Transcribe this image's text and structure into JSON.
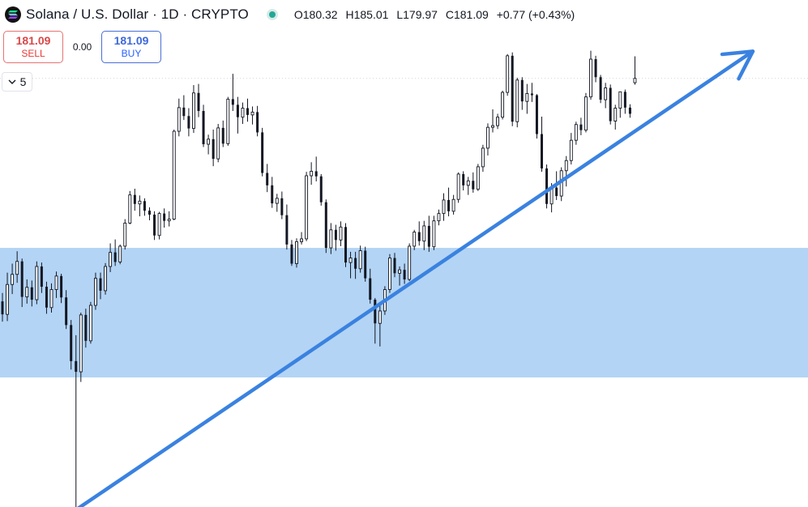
{
  "symbol": {
    "title": "Solana / U.S. Dollar · 1D · CRYPTO",
    "market_status_color": "#26a69a"
  },
  "ohlc": {
    "o_label": "O",
    "o": "180.32",
    "h_label": "H",
    "h": "185.01",
    "l_label": "L",
    "l": "179.97",
    "c_label": "C",
    "c": "181.09",
    "change": "+0.77 (+0.43%)"
  },
  "trade": {
    "sell_price": "181.09",
    "sell_label": "SELL",
    "spread": "0.00",
    "buy_price": "181.09",
    "buy_label": "BUY"
  },
  "indicators": {
    "count": "5"
  },
  "colors": {
    "candle": "#131722",
    "zone": "#b3d4f5",
    "trendline": "#3a82e0"
  },
  "chart_data": {
    "type": "candlestick",
    "ylim": [
      105,
      195
    ],
    "last_close": 181.09,
    "zone": {
      "low": 128,
      "high": 151
    },
    "trendline": {
      "from": {
        "bar": 15,
        "price": 103
      },
      "to": {
        "bar": 118,
        "price": 182
      },
      "arrow": true
    },
    "candles": [
      [
        141.5,
        143.0,
        137.9,
        139.2
      ],
      [
        139.2,
        146.6,
        138.0,
        144.5
      ],
      [
        144.5,
        148.2,
        142.8,
        146.3
      ],
      [
        146.3,
        150.4,
        144.8,
        148.6
      ],
      [
        148.6,
        149.1,
        140.5,
        142.3
      ],
      [
        142.3,
        145.4,
        141.1,
        144.0
      ],
      [
        144.0,
        145.2,
        140.6,
        141.8
      ],
      [
        141.8,
        148.6,
        141.0,
        147.7
      ],
      [
        147.7,
        148.4,
        143.0,
        144.1
      ],
      [
        144.1,
        145.0,
        139.3,
        140.4
      ],
      [
        140.4,
        144.7,
        139.5,
        143.6
      ],
      [
        143.6,
        146.8,
        142.1,
        146.0
      ],
      [
        146.0,
        146.4,
        141.2,
        142.2
      ],
      [
        142.2,
        143.5,
        136.6,
        137.3
      ],
      [
        137.3,
        138.2,
        129.4,
        130.9
      ],
      [
        130.9,
        135.5,
        102.9,
        129.0
      ],
      [
        129.0,
        139.5,
        127.2,
        139.1
      ],
      [
        139.1,
        140.2,
        133.3,
        134.5
      ],
      [
        134.5,
        141.4,
        134.0,
        140.8
      ],
      [
        140.8,
        146.6,
        140.0,
        145.6
      ],
      [
        145.6,
        146.6,
        141.9,
        143.4
      ],
      [
        143.4,
        148.3,
        142.7,
        147.7
      ],
      [
        147.7,
        151.8,
        146.7,
        150.2
      ],
      [
        150.2,
        152.5,
        147.8,
        148.5
      ],
      [
        148.5,
        151.6,
        148.1,
        151.3
      ],
      [
        151.3,
        156.1,
        150.7,
        155.4
      ],
      [
        155.4,
        161.1,
        155.2,
        160.4
      ],
      [
        160.4,
        161.5,
        157.6,
        158.8
      ],
      [
        158.8,
        160.3,
        156.6,
        159.3
      ],
      [
        159.3,
        159.8,
        156.7,
        157.6
      ],
      [
        157.6,
        158.2,
        155.9,
        156.9
      ],
      [
        156.9,
        157.5,
        152.4,
        153.2
      ],
      [
        153.2,
        157.4,
        152.5,
        157.1
      ],
      [
        157.1,
        158.0,
        154.6,
        155.8
      ],
      [
        155.8,
        157.5,
        154.8,
        156.1
      ],
      [
        156.1,
        172.0,
        155.9,
        171.7
      ],
      [
        171.7,
        177.5,
        170.8,
        175.9
      ],
      [
        175.9,
        178.1,
        173.7,
        174.4
      ],
      [
        174.4,
        175.8,
        170.8,
        172.2
      ],
      [
        172.2,
        179.9,
        171.4,
        178.5
      ],
      [
        178.5,
        180.1,
        174.2,
        175.3
      ],
      [
        175.3,
        176.4,
        168.9,
        169.4
      ],
      [
        169.4,
        171.1,
        167.6,
        170.3
      ],
      [
        170.3,
        172.0,
        165.5,
        166.8
      ],
      [
        166.8,
        173.0,
        166.2,
        172.3
      ],
      [
        172.3,
        173.6,
        168.9,
        169.5
      ],
      [
        169.5,
        177.8,
        169.1,
        177.4
      ],
      [
        177.4,
        181.9,
        175.3,
        176.4
      ],
      [
        176.4,
        177.8,
        171.3,
        174.2
      ],
      [
        174.2,
        176.8,
        173.0,
        175.8
      ],
      [
        175.8,
        177.5,
        173.4,
        174.6
      ],
      [
        174.6,
        176.1,
        172.9,
        175.1
      ],
      [
        175.1,
        176.2,
        170.8,
        171.5
      ],
      [
        171.5,
        172.3,
        163.7,
        164.3
      ],
      [
        164.3,
        165.9,
        160.9,
        162.1
      ],
      [
        162.1,
        163.6,
        158.1,
        158.9
      ],
      [
        158.9,
        160.6,
        157.4,
        159.8
      ],
      [
        159.8,
        161.0,
        156.1,
        156.8
      ],
      [
        156.8,
        158.7,
        150.7,
        151.6
      ],
      [
        151.6,
        152.4,
        147.8,
        148.2
      ],
      [
        148.2,
        152.7,
        147.5,
        152.1
      ],
      [
        152.1,
        153.8,
        151.6,
        152.6
      ],
      [
        152.6,
        164.5,
        152.2,
        163.8
      ],
      [
        163.8,
        166.2,
        162.2,
        164.6
      ],
      [
        164.6,
        167.2,
        162.8,
        163.7
      ],
      [
        163.7,
        164.1,
        158.5,
        159.1
      ],
      [
        159.1,
        159.6,
        150.1,
        151.0
      ],
      [
        151.0,
        155.4,
        149.9,
        154.2
      ],
      [
        154.2,
        155.1,
        150.5,
        152.4
      ],
      [
        152.4,
        155.7,
        151.3,
        154.7
      ],
      [
        154.7,
        155.4,
        147.6,
        148.4
      ],
      [
        148.4,
        150.3,
        145.6,
        149.2
      ],
      [
        149.2,
        150.3,
        145.5,
        147.3
      ],
      [
        147.3,
        151.4,
        146.6,
        150.5
      ],
      [
        150.5,
        151.2,
        145.0,
        145.6
      ],
      [
        145.6,
        147.3,
        141.1,
        141.8
      ],
      [
        141.8,
        142.1,
        134.0,
        137.6
      ],
      [
        137.6,
        141.2,
        133.5,
        139.8
      ],
      [
        139.8,
        144.2,
        139.1,
        143.6
      ],
      [
        143.6,
        149.9,
        143.0,
        149.2
      ],
      [
        149.2,
        150.1,
        145.8,
        146.5
      ],
      [
        146.5,
        147.7,
        144.3,
        147.1
      ],
      [
        147.1,
        148.2,
        144.6,
        145.4
      ],
      [
        145.4,
        151.8,
        145.1,
        151.3
      ],
      [
        151.3,
        154.2,
        150.6,
        153.8
      ],
      [
        153.8,
        155.7,
        151.4,
        152.2
      ],
      [
        152.2,
        155.8,
        150.6,
        154.9
      ],
      [
        154.9,
        156.7,
        150.3,
        151.2
      ],
      [
        151.2,
        156.7,
        150.6,
        155.8
      ],
      [
        155.8,
        157.8,
        155.0,
        157.1
      ],
      [
        157.1,
        160.7,
        155.8,
        159.5
      ],
      [
        159.5,
        161.7,
        156.6,
        157.5
      ],
      [
        157.5,
        160.4,
        156.9,
        159.6
      ],
      [
        159.6,
        164.4,
        159.0,
        164.1
      ],
      [
        164.1,
        164.6,
        161.2,
        162.1
      ],
      [
        162.1,
        163.6,
        160.4,
        162.9
      ],
      [
        162.9,
        164.4,
        160.8,
        161.4
      ],
      [
        161.4,
        165.9,
        161.1,
        165.4
      ],
      [
        165.4,
        169.3,
        164.5,
        168.7
      ],
      [
        168.7,
        173.1,
        167.4,
        172.4
      ],
      [
        172.4,
        175.6,
        171.5,
        172.7
      ],
      [
        172.7,
        174.8,
        172.1,
        174.2
      ],
      [
        174.2,
        178.9,
        173.8,
        178.6
      ],
      [
        178.6,
        185.4,
        178.0,
        185.1
      ],
      [
        185.1,
        185.7,
        172.6,
        173.4
      ],
      [
        173.4,
        181.2,
        172.4,
        180.8
      ],
      [
        180.8,
        181.3,
        175.5,
        177.0
      ],
      [
        177.0,
        180.1,
        174.8,
        178.4
      ],
      [
        178.4,
        180.3,
        176.9,
        178.1
      ],
      [
        178.1,
        178.3,
        170.4,
        171.2
      ],
      [
        171.2,
        174.3,
        164.5,
        165.1
      ],
      [
        165.1,
        165.8,
        158.0,
        158.8
      ],
      [
        158.8,
        162.5,
        157.3,
        161.7
      ],
      [
        161.7,
        164.6,
        159.5,
        160.2
      ],
      [
        160.2,
        165.3,
        159.3,
        164.7
      ],
      [
        164.7,
        167.3,
        161.9,
        166.5
      ],
      [
        166.5,
        171.4,
        165.8,
        170.1
      ],
      [
        170.1,
        173.4,
        169.3,
        172.9
      ],
      [
        172.9,
        174.1,
        171.0,
        171.9
      ],
      [
        171.9,
        178.5,
        171.5,
        177.8
      ],
      [
        177.8,
        186.0,
        177.3,
        184.5
      ],
      [
        184.5,
        185.1,
        180.4,
        181.3
      ],
      [
        181.3,
        181.7,
        176.7,
        177.3
      ],
      [
        177.3,
        180.3,
        175.8,
        179.4
      ],
      [
        179.4,
        180.0,
        172.9,
        173.5
      ],
      [
        173.5,
        176.4,
        172.0,
        175.8
      ],
      [
        175.8,
        177.9,
        174.1,
        178.7
      ],
      [
        178.7,
        179.1,
        174.8,
        175.9
      ],
      [
        175.9,
        176.5,
        174.1,
        174.8
      ],
      [
        180.32,
        185.01,
        179.97,
        181.09
      ]
    ]
  }
}
